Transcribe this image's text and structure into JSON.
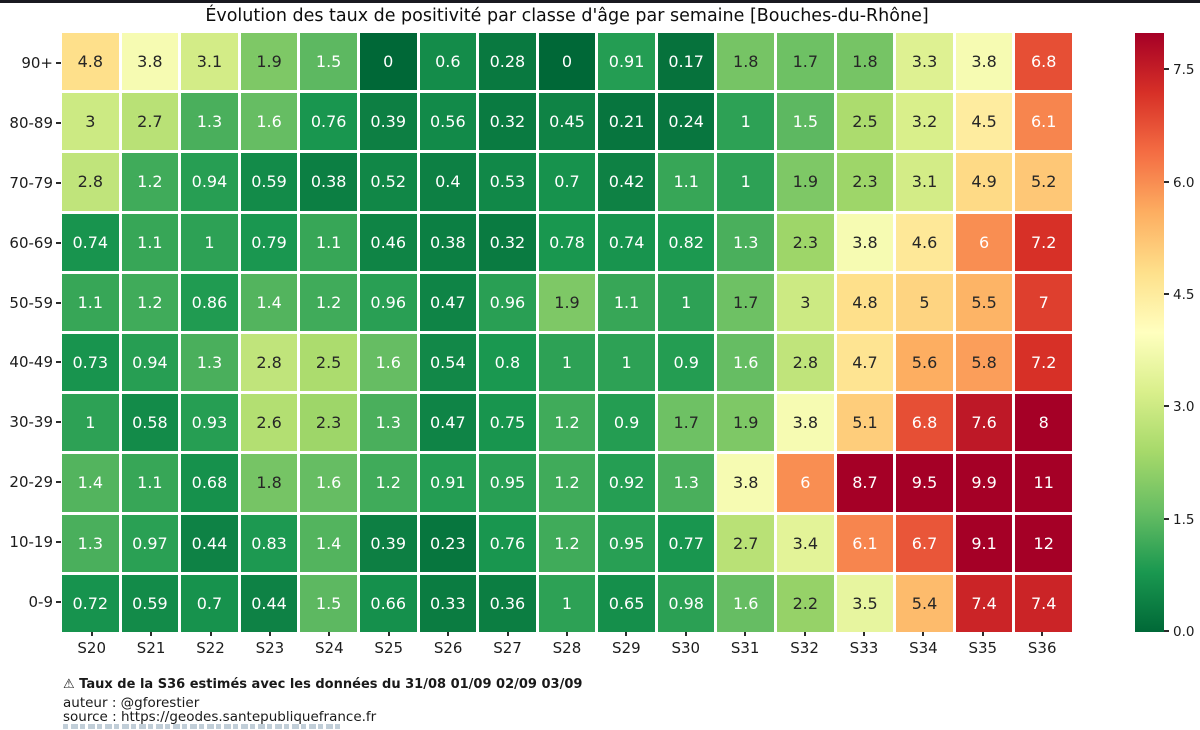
{
  "page": {
    "top_strip_color": "#191920",
    "background_color": "#ffffff"
  },
  "chart_data": {
    "type": "heatmap",
    "title": "Évolution des taux de positivité par classe d'âge par semaine [Bouches-du-Rhône]",
    "x_categories": [
      "S20",
      "S21",
      "S22",
      "S23",
      "S24",
      "S25",
      "S26",
      "S27",
      "S28",
      "S29",
      "S30",
      "S31",
      "S32",
      "S33",
      "S34",
      "S35",
      "S36"
    ],
    "y_categories": [
      "90+",
      "80-89",
      "70-79",
      "60-69",
      "50-59",
      "40-49",
      "30-39",
      "20-29",
      "10-19",
      "0-9"
    ],
    "rows": [
      {
        "label": "90+",
        "values": [
          "4.8",
          "3.8",
          "3.1",
          "1.9",
          "1.5",
          "0",
          "0.6",
          "0.28",
          "0",
          "0.91",
          "0.17",
          "1.8",
          "1.7",
          "1.8",
          "3.3",
          "3.8",
          "6.8"
        ]
      },
      {
        "label": "80-89",
        "values": [
          "3",
          "2.7",
          "1.3",
          "1.6",
          "0.76",
          "0.39",
          "0.56",
          "0.32",
          "0.45",
          "0.21",
          "0.24",
          "1",
          "1.5",
          "2.5",
          "3.2",
          "4.5",
          "6.1"
        ]
      },
      {
        "label": "70-79",
        "values": [
          "2.8",
          "1.2",
          "0.94",
          "0.59",
          "0.38",
          "0.52",
          "0.4",
          "0.53",
          "0.7",
          "0.42",
          "1.1",
          "1",
          "1.9",
          "2.3",
          "3.1",
          "4.9",
          "5.2"
        ]
      },
      {
        "label": "60-69",
        "values": [
          "0.74",
          "1.1",
          "1",
          "0.79",
          "1.1",
          "0.46",
          "0.38",
          "0.32",
          "0.78",
          "0.74",
          "0.82",
          "1.3",
          "2.3",
          "3.8",
          "4.6",
          "6",
          "7.2"
        ]
      },
      {
        "label": "50-59",
        "values": [
          "1.1",
          "1.2",
          "0.86",
          "1.4",
          "1.2",
          "0.96",
          "0.47",
          "0.96",
          "1.9",
          "1.1",
          "1",
          "1.7",
          "3",
          "4.8",
          "5",
          "5.5",
          "7"
        ]
      },
      {
        "label": "40-49",
        "values": [
          "0.73",
          "0.94",
          "1.3",
          "2.8",
          "2.5",
          "1.6",
          "0.54",
          "0.8",
          "1",
          "1",
          "0.9",
          "1.6",
          "2.8",
          "4.7",
          "5.6",
          "5.8",
          "7.2"
        ]
      },
      {
        "label": "30-39",
        "values": [
          "1",
          "0.58",
          "0.93",
          "2.6",
          "2.3",
          "1.3",
          "0.47",
          "0.75",
          "1.2",
          "0.9",
          "1.7",
          "1.9",
          "3.8",
          "5.1",
          "6.8",
          "7.6",
          "8"
        ]
      },
      {
        "label": "20-29",
        "values": [
          "1.4",
          "1.1",
          "0.68",
          "1.8",
          "1.6",
          "1.2",
          "0.91",
          "0.95",
          "1.2",
          "0.92",
          "1.3",
          "3.8",
          "6",
          "8.7",
          "9.5",
          "9.9",
          "11"
        ]
      },
      {
        "label": "10-19",
        "values": [
          "1.3",
          "0.97",
          "0.44",
          "0.83",
          "1.4",
          "0.39",
          "0.23",
          "0.76",
          "1.2",
          "0.95",
          "0.77",
          "2.7",
          "3.4",
          "6.1",
          "6.7",
          "9.1",
          "12"
        ]
      },
      {
        "label": "0-9",
        "values": [
          "0.72",
          "0.59",
          "0.7",
          "0.44",
          "1.5",
          "0.66",
          "0.33",
          "0.36",
          "1",
          "0.65",
          "0.98",
          "1.6",
          "2.2",
          "3.5",
          "5.4",
          "7.4",
          "7.4"
        ]
      }
    ],
    "colormap": "RdYlGn_r",
    "vmin": 0,
    "vmax": 8,
    "colormap_stops": [
      "#006837",
      "#1a9850",
      "#66bd63",
      "#a6d96a",
      "#d9ef8b",
      "#ffffbf",
      "#fee08b",
      "#fdae61",
      "#f46d43",
      "#d73027",
      "#a50026"
    ],
    "annotation_text_dark": "#262626",
    "annotation_text_light": "#ffffff",
    "legend_position": "right",
    "grid": false,
    "colorbar_ticks": [
      {
        "label": "0.0",
        "value": 0
      },
      {
        "label": "1.5",
        "value": 1.5
      },
      {
        "label": "3.0",
        "value": 3
      },
      {
        "label": "4.5",
        "value": 4.5
      },
      {
        "label": "6.0",
        "value": 6
      },
      {
        "label": "7.5",
        "value": 7.5
      }
    ]
  },
  "footer": {
    "note": "⚠ Taux de la S36 estimés avec les données du 31/08 01/09 02/09 03/09",
    "author": "auteur : @gforestier",
    "source": "source : https://geodes.santepubliquefrance.fr"
  }
}
